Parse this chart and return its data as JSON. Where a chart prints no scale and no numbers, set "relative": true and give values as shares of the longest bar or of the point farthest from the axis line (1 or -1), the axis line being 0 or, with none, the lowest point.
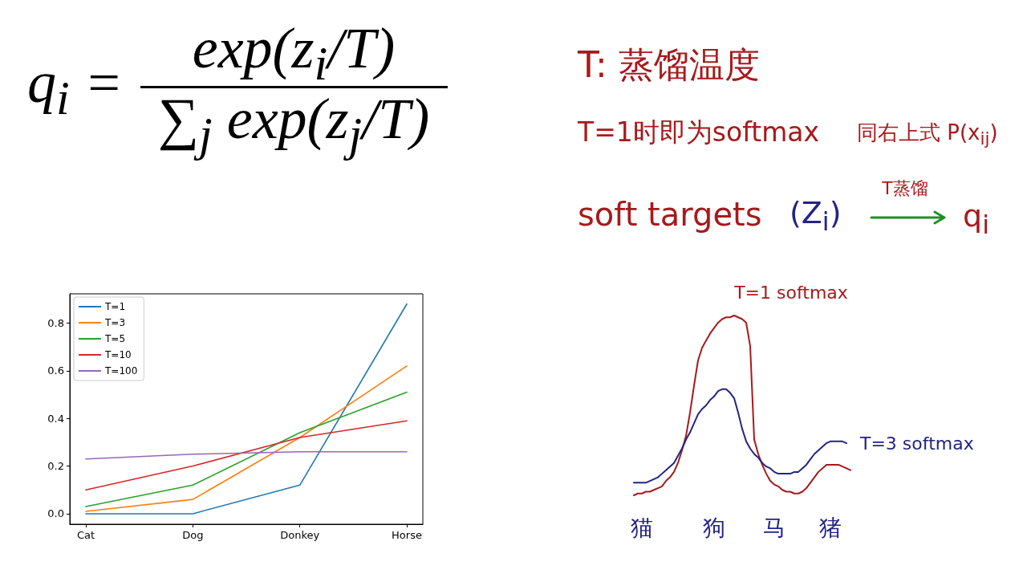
{
  "chart_data": [
    {
      "type": "other",
      "annotations": [
        "q$_{i}$ =",
        "exp(z$_{i}$/T)",
        "∑$_{j}$ exp(z$_{j}$/T)",
        "T: 蒸馏温度",
        "T=1时即为softmax",
        "同右上式 P(x$_{ij}$)",
        "soft targets",
        "(Z$_{i}$)",
        "T蒸馏",
        "q$_{i}$"
      ]
    },
    {
      "type": "line",
      "categories": [
        "Cat",
        "Dog",
        "Donkey",
        "Horse"
      ],
      "series": [
        {
          "name": "T=1",
          "color": "#1f77b4",
          "values": [
            0,
            0,
            0.12,
            0.88
          ]
        },
        {
          "name": "T=3",
          "color": "#ff7f0e",
          "values": [
            0.01,
            0.06,
            0.32,
            0.62
          ]
        },
        {
          "name": "T=5",
          "color": "#2ca02c",
          "values": [
            0.03,
            0.12,
            0.34,
            0.51
          ]
        },
        {
          "name": "T=10",
          "color": "#d62728",
          "values": [
            0.1,
            0.2,
            0.32,
            0.39
          ]
        },
        {
          "name": "T=100",
          "color": "#9467bd",
          "values": [
            0.23,
            0.25,
            0.26,
            0.26
          ]
        }
      ],
      "ylim": [
        -0.044,
        0.923
      ],
      "yticks": [
        {
          "value": 0,
          "label": "0.0"
        },
        0.2,
        0.4,
        0.6,
        0.8
      ],
      "legend": "top left"
    },
    {
      "type": "line",
      "relative": true,
      "categories": [
        null,
        null,
        "猫",
        null,
        null,
        null,
        null,
        null,
        null,
        null,
        null,
        null,
        null,
        null,
        null,
        null,
        null,
        null,
        null,
        null,
        "狗",
        null,
        null,
        null,
        null,
        null,
        null,
        null,
        null,
        null,
        null,
        null,
        null,
        null,
        null,
        "马",
        null,
        null,
        null,
        null,
        null,
        null,
        null,
        null,
        null,
        null,
        null,
        null,
        null,
        "猪",
        null,
        null,
        null,
        null,
        null
      ],
      "series": [
        {
          "name": "T=1 softmax",
          "color": "#a8191c",
          "values": [
            0,
            0.01,
            0.01,
            0.02,
            0.02,
            0.03,
            0.04,
            0.05,
            0.08,
            0.1,
            0.13,
            0.18,
            0.25,
            0.33,
            0.46,
            0.61,
            0.75,
            0.82,
            0.86,
            0.9,
            0.93,
            0.96,
            0.98,
            0.99,
            0.99,
            1,
            0.99,
            0.98,
            0.96,
            0.83,
            0.31,
            0.23,
            0.17,
            0.12,
            0.08,
            0.06,
            0.05,
            0.03,
            0.02,
            0.02,
            0.01,
            0.01,
            0.02,
            0.04,
            0.07,
            0.1,
            0.13,
            0.15,
            0.17,
            0.17,
            0.17,
            0.17,
            0.16,
            0.15,
            0.14
          ]
        },
        {
          "name": "T=3 softmax",
          "color": "#232385",
          "values": [
            0.07,
            0.07,
            0.07,
            0.07,
            0.08,
            0.09,
            0.1,
            0.12,
            0.14,
            0.16,
            0.18,
            0.22,
            0.26,
            0.31,
            0.35,
            0.4,
            0.45,
            0.48,
            0.5,
            0.53,
            0.55,
            0.58,
            0.59,
            0.59,
            0.57,
            0.54,
            0.46,
            0.37,
            0.3,
            0.26,
            0.23,
            0.21,
            0.18,
            0.16,
            0.15,
            0.13,
            0.12,
            0.12,
            0.12,
            0.12,
            0.13,
            0.13,
            0.15,
            0.17,
            0.2,
            0.23,
            0.25,
            0.27,
            0.29,
            0.3,
            0.3,
            0.3,
            0.3,
            0.29,
            null
          ]
        }
      ]
    }
  ]
}
